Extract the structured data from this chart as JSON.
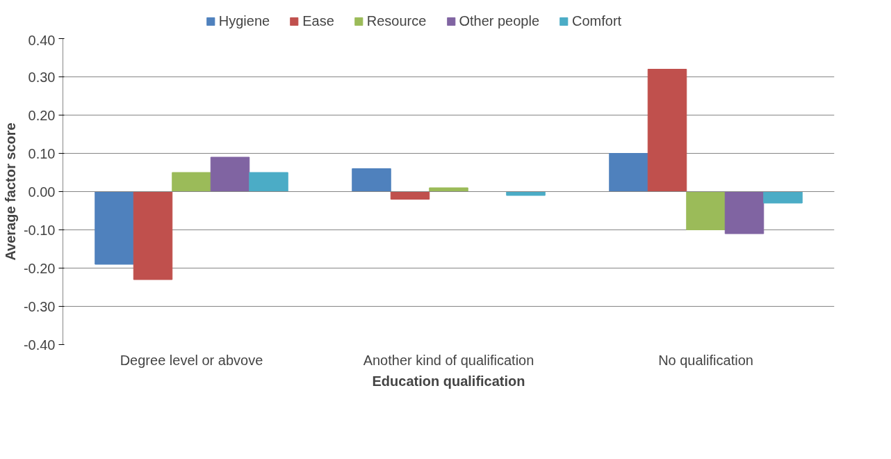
{
  "chart_data": {
    "type": "bar",
    "xlabel": "Education qualification",
    "ylabel": "Average factor score",
    "categories": [
      "Degree level or abvove",
      "Another kind of qualification",
      "No qualification"
    ],
    "series": [
      {
        "name": "Hygiene",
        "color": "#4f81bd",
        "values": [
          -0.19,
          0.06,
          0.1
        ]
      },
      {
        "name": "Ease",
        "color": "#c0504d",
        "values": [
          -0.23,
          -0.02,
          0.32
        ]
      },
      {
        "name": "Resource",
        "color": "#9bbb59",
        "values": [
          0.05,
          0.01,
          -0.1
        ]
      },
      {
        "name": "Other people",
        "color": "#8064a2",
        "values": [
          0.09,
          0.0,
          -0.11
        ]
      },
      {
        "name": "Comfort",
        "color": "#4bacc6",
        "values": [
          0.05,
          -0.01,
          -0.03
        ]
      }
    ],
    "ylim": [
      -0.4,
      0.4
    ],
    "yticks": [
      {
        "value": -0.4,
        "label": "-0.40"
      },
      {
        "value": -0.3,
        "label": "-0.30"
      },
      {
        "value": -0.2,
        "label": "-0.20"
      },
      {
        "value": -0.1,
        "label": "-0.10"
      },
      {
        "value": 0,
        "label": "0.00"
      },
      {
        "value": 0.1,
        "label": "0.10"
      },
      {
        "value": 0.2,
        "label": "0.20"
      },
      {
        "value": 0.3,
        "label": "0.30"
      },
      {
        "value": 0.4,
        "label": "0.40"
      }
    ],
    "grid": "y",
    "legend": "top"
  }
}
